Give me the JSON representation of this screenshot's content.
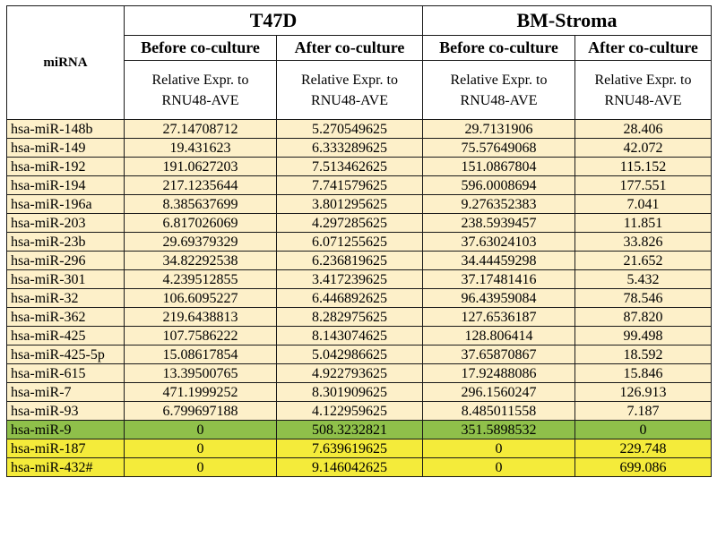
{
  "table": {
    "row_header": "miRNA",
    "groups": [
      "T47D",
      "BM-Stroma"
    ],
    "phases": [
      "Before co-culture",
      "After co-culture",
      "Before co-culture",
      "After co-culture"
    ],
    "unit_line1": "Relative Expr. to",
    "unit_line2": "RNU48-AVE",
    "row_colors": {
      "normal": "#fdf0c9",
      "green": "#8fc04a",
      "yellow": "#f4eb3a"
    },
    "rows": [
      {
        "name": "hsa-miR-148b",
        "highlight": "normal",
        "values": [
          "27.14708712",
          "5.270549625",
          "29.7131906",
          "28.406"
        ]
      },
      {
        "name": "hsa-miR-149",
        "highlight": "normal",
        "values": [
          "19.431623",
          "6.333289625",
          "75.57649068",
          "42.072"
        ]
      },
      {
        "name": "hsa-miR-192",
        "highlight": "normal",
        "values": [
          "191.0627203",
          "7.513462625",
          "151.0867804",
          "115.152"
        ]
      },
      {
        "name": "hsa-miR-194",
        "highlight": "normal",
        "values": [
          "217.1235644",
          "7.741579625",
          "596.0008694",
          "177.551"
        ]
      },
      {
        "name": "hsa-miR-196a",
        "highlight": "normal",
        "values": [
          "8.385637699",
          "3.801295625",
          "9.276352383",
          "7.041"
        ]
      },
      {
        "name": "hsa-miR-203",
        "highlight": "normal",
        "values": [
          "6.817026069",
          "4.297285625",
          "238.5939457",
          "11.851"
        ]
      },
      {
        "name": "hsa-miR-23b",
        "highlight": "normal",
        "values": [
          "29.69379329",
          "6.071255625",
          "37.63024103",
          "33.826"
        ]
      },
      {
        "name": "hsa-miR-296",
        "highlight": "normal",
        "values": [
          "34.82292538",
          "6.236819625",
          "34.44459298",
          "21.652"
        ]
      },
      {
        "name": "hsa-miR-301",
        "highlight": "normal",
        "values": [
          "4.239512855",
          "3.417239625",
          "37.17481416",
          "5.432"
        ]
      },
      {
        "name": "hsa-miR-32",
        "highlight": "normal",
        "values": [
          "106.6095227",
          "6.446892625",
          "96.43959084",
          "78.546"
        ]
      },
      {
        "name": "hsa-miR-362",
        "highlight": "normal",
        "values": [
          "219.6438813",
          "8.282975625",
          "127.6536187",
          "87.820"
        ]
      },
      {
        "name": "hsa-miR-425",
        "highlight": "normal",
        "values": [
          "107.7586222",
          "8.143074625",
          "128.806414",
          "99.498"
        ]
      },
      {
        "name": "hsa-miR-425-5p",
        "highlight": "normal",
        "values": [
          "15.08617854",
          "5.042986625",
          "37.65870867",
          "18.592"
        ]
      },
      {
        "name": "hsa-miR-615",
        "highlight": "normal",
        "values": [
          "13.39500765",
          "4.922793625",
          "17.92488086",
          "15.846"
        ]
      },
      {
        "name": "hsa-miR-7",
        "highlight": "normal",
        "values": [
          "471.1999252",
          "8.301909625",
          "296.1560247",
          "126.913"
        ]
      },
      {
        "name": "hsa-miR-93",
        "highlight": "normal",
        "values": [
          "6.799697188",
          "4.122959625",
          "8.485011558",
          "7.187"
        ]
      },
      {
        "name": "hsa-miR-9",
        "highlight": "green",
        "values": [
          "0",
          "508.3232821",
          "351.5898532",
          "0"
        ]
      },
      {
        "name": "hsa-miR-187",
        "highlight": "yellow",
        "values": [
          "0",
          "7.639619625",
          "0",
          "229.748"
        ]
      },
      {
        "name": "hsa-miR-432#",
        "highlight": "yellow",
        "values": [
          "0",
          "9.146042625",
          "0",
          "699.086"
        ]
      }
    ]
  }
}
